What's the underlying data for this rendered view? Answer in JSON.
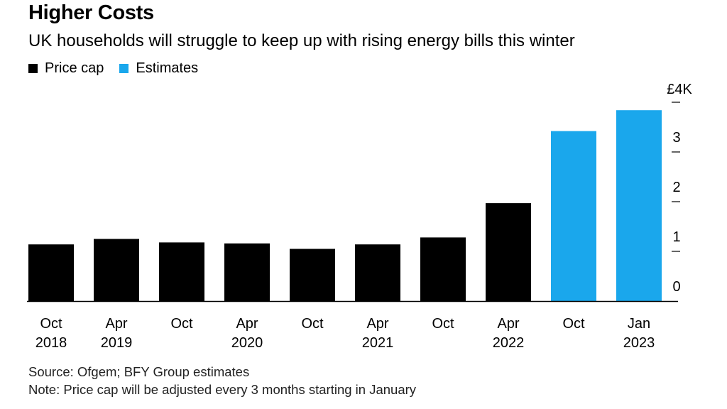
{
  "header": {
    "title": "Higher Costs",
    "subtitle": "UK households will struggle to keep up with rising energy bills this winter"
  },
  "legend": [
    {
      "label": "Price cap",
      "color": "#000000"
    },
    {
      "label": "Estimates",
      "color": "#1aa7ec"
    }
  ],
  "chart_data": {
    "type": "bar",
    "title": "Higher Costs",
    "subtitle": "UK households will struggle to keep up with rising energy bills this winter",
    "categories": [
      [
        "Oct",
        "2018"
      ],
      [
        "Apr",
        "2019"
      ],
      [
        "Oct",
        ""
      ],
      [
        "Apr",
        "2020"
      ],
      [
        "Oct",
        ""
      ],
      [
        "Apr",
        "2021"
      ],
      [
        "Oct",
        ""
      ],
      [
        "Apr",
        "2022"
      ],
      [
        "Oct",
        ""
      ],
      [
        "Jan",
        "2023"
      ]
    ],
    "series": [
      {
        "name": "Price cap",
        "color": "#000000",
        "values": [
          1.14,
          1.25,
          1.18,
          1.16,
          1.05,
          1.14,
          1.28,
          1.97,
          null,
          null
        ]
      },
      {
        "name": "Estimates",
        "color": "#1aa7ec",
        "values": [
          null,
          null,
          null,
          null,
          null,
          null,
          null,
          null,
          3.42,
          3.84
        ]
      }
    ],
    "yticks": [
      {
        "value": 0,
        "label": "0"
      },
      {
        "value": 1,
        "label": "1"
      },
      {
        "value": 2,
        "label": "2"
      },
      {
        "value": 3,
        "label": "3"
      },
      {
        "value": 4,
        "label": "£4K"
      }
    ],
    "ylim": [
      0,
      4
    ],
    "xlabel": "",
    "ylabel": "",
    "y_axis_side": "right"
  },
  "footer": {
    "source": "Source: Ofgem; BFY Group estimates",
    "note": "Note: Price cap will be adjusted every 3 months starting in January"
  }
}
